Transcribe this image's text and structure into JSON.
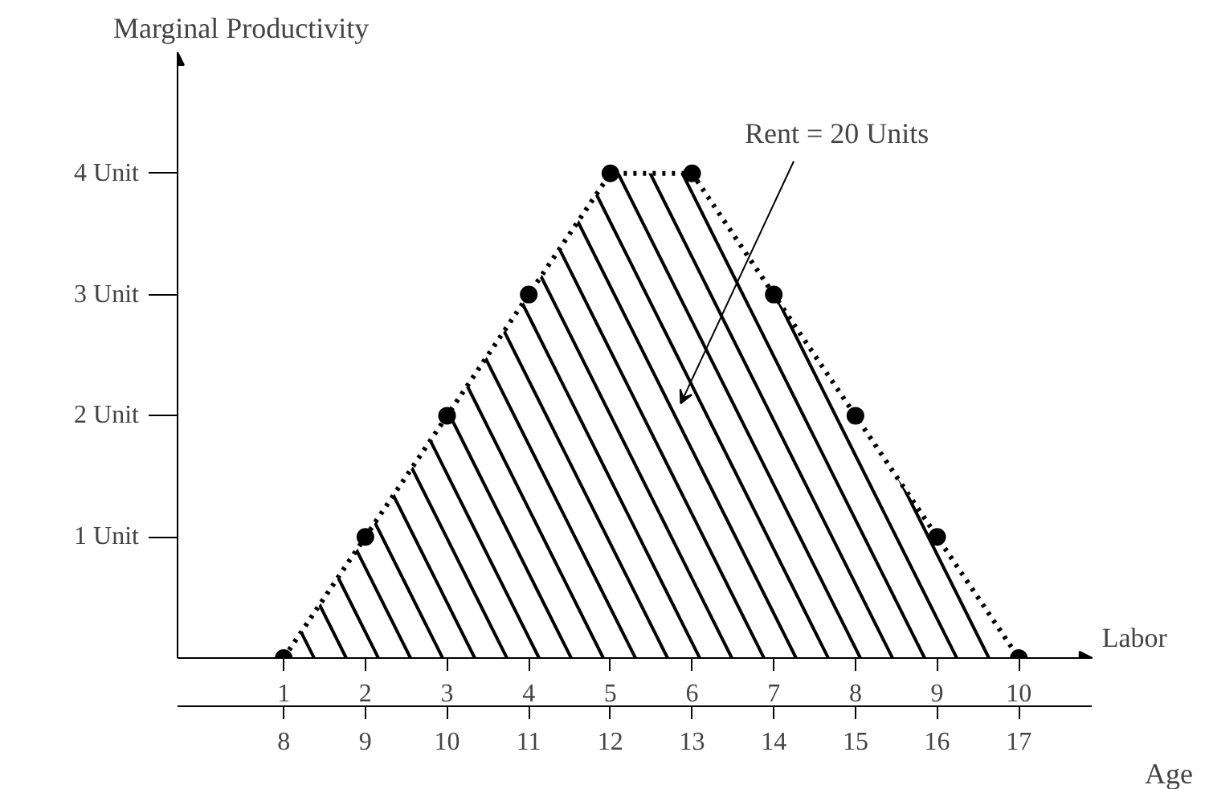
{
  "chart_data": {
    "type": "area",
    "ylabel": "Marginal Productivity",
    "xlabel": "Labor",
    "x2label": "Age",
    "x": [
      1,
      2,
      3,
      4,
      5,
      6,
      7,
      8,
      9,
      10
    ],
    "series": [
      {
        "color": "#000000",
        "values": [
          0,
          1,
          2,
          3,
          4,
          4,
          3,
          2,
          1,
          0
        ]
      }
    ],
    "xlim": [
      -0.3,
      10.9
    ],
    "xticks": [
      1,
      2,
      3,
      4,
      5,
      6,
      7,
      8,
      9,
      10
    ],
    "x2lim": [
      6.7,
      17.9
    ],
    "x2ticks": [
      8,
      9,
      10,
      11,
      12,
      13,
      14,
      15,
      16,
      17
    ],
    "ylim": [
      0,
      5
    ],
    "yticks": [
      {
        "value": 1,
        "label": "1 Unit"
      },
      {
        "value": 2,
        "label": "2 Unit"
      },
      {
        "value": 3,
        "label": "3 Unit"
      },
      {
        "value": 4,
        "label": "4 Unit"
      }
    ],
    "annotations": [
      "Rent = 20 Units"
    ],
    "marker": "circle",
    "line_style": "dotted",
    "grid": false
  }
}
